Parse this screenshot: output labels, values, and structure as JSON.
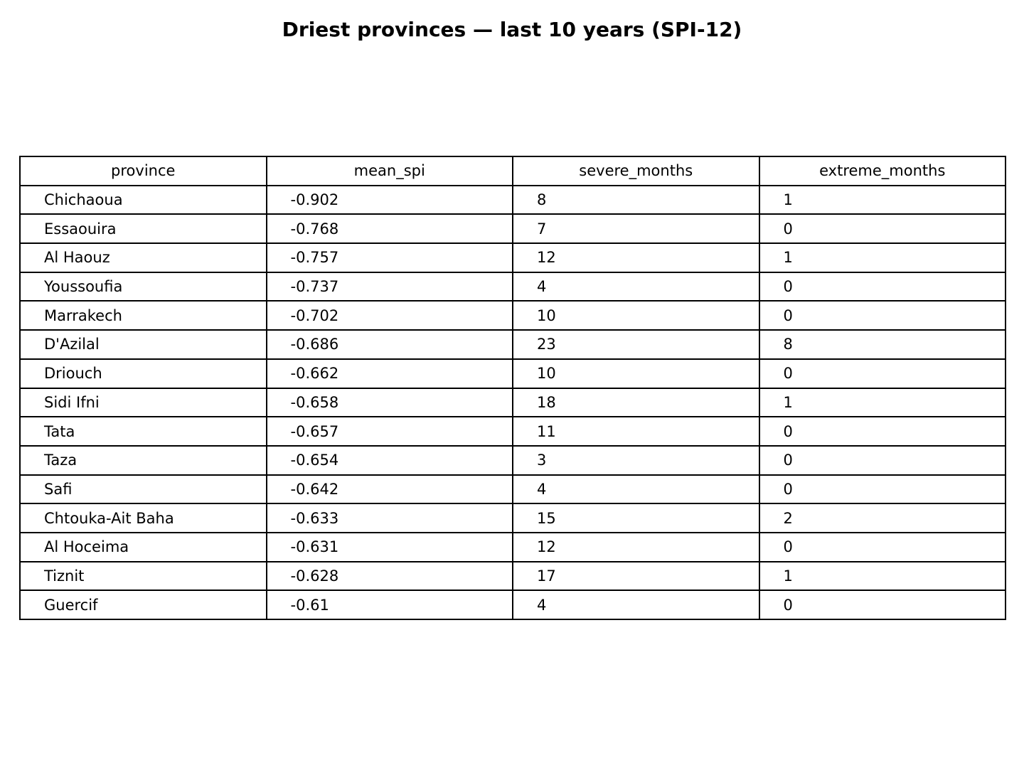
{
  "chart_data": {
    "type": "table",
    "title": "Driest provinces — last 10 years (SPI-12)",
    "columns": [
      "province",
      "mean_spi",
      "severe_months",
      "extreme_months"
    ],
    "rows": [
      [
        "Chichaoua",
        "-0.902",
        "8",
        "1"
      ],
      [
        "Essaouira",
        "-0.768",
        "7",
        "0"
      ],
      [
        "Al Haouz",
        "-0.757",
        "12",
        "1"
      ],
      [
        "Youssoufia",
        "-0.737",
        "4",
        "0"
      ],
      [
        "Marrakech",
        "-0.702",
        "10",
        "0"
      ],
      [
        "D'Azilal",
        "-0.686",
        "23",
        "8"
      ],
      [
        "Driouch",
        "-0.662",
        "10",
        "0"
      ],
      [
        "Sidi Ifni",
        "-0.658",
        "18",
        "1"
      ],
      [
        "Tata",
        "-0.657",
        "11",
        "0"
      ],
      [
        "Taza",
        "-0.654",
        "3",
        "0"
      ],
      [
        "Safi",
        "-0.642",
        "4",
        "0"
      ],
      [
        "Chtouka-Ait Baha",
        "-0.633",
        "15",
        "2"
      ],
      [
        "Al Hoceima",
        "-0.631",
        "12",
        "0"
      ],
      [
        "Tiznit",
        "-0.628",
        "17",
        "1"
      ],
      [
        "Guercif",
        "-0.61",
        "4",
        "0"
      ]
    ]
  }
}
